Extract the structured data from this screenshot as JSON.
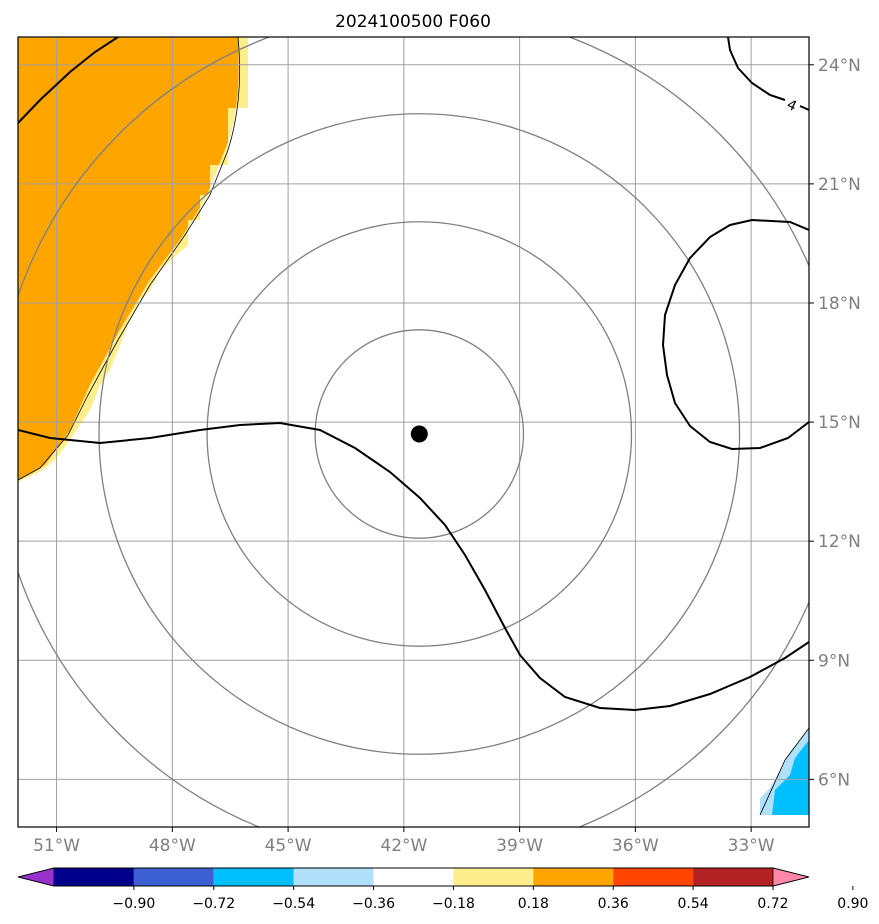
{
  "title": "2024100500 F060",
  "map": {
    "lon_range": [
      -52,
      -31.5
    ],
    "lat_range": [
      4.8,
      24.7
    ],
    "lon_ticks": [
      {
        "value": -51,
        "label": "51°W"
      },
      {
        "value": -48,
        "label": "48°W"
      },
      {
        "value": -45,
        "label": "45°W"
      },
      {
        "value": -42,
        "label": "42°W"
      },
      {
        "value": -39,
        "label": "39°W"
      },
      {
        "value": -36,
        "label": "36°W"
      },
      {
        "value": -33,
        "label": "33°W"
      }
    ],
    "lat_ticks": [
      {
        "value": 24,
        "label": "24°N"
      },
      {
        "value": 21,
        "label": "21°N"
      },
      {
        "value": 18,
        "label": "18°N"
      },
      {
        "value": 15,
        "label": "15°N"
      },
      {
        "value": 12,
        "label": "12°N"
      },
      {
        "value": 9,
        "label": "9°N"
      },
      {
        "value": 6,
        "label": "6°N"
      }
    ],
    "gridlines": true,
    "center_marker": {
      "lon": -41.6,
      "lat": 14.7
    },
    "range_rings_deg": [
      2.7,
      5.5,
      8.3,
      11.0
    ],
    "contour_label": "4",
    "fill_colors": {
      "orange": "#ffa500",
      "light_yellow": "#ffee8c",
      "deep_sky_blue": "#00bfff"
    }
  },
  "colorbar": {
    "levels": [
      "−0.90",
      "−0.72",
      "−0.54",
      "−0.36",
      "−0.18",
      "0.18",
      "0.36",
      "0.54",
      "0.72",
      "0.90"
    ],
    "colors": [
      "#9932cc",
      "#00008b",
      "#3c5fd2",
      "#00bfff",
      "#b0e0fa",
      "#ffffff",
      "#ffee8c",
      "#ffa500",
      "#ff4500",
      "#b22222",
      "#ff88aa"
    ]
  }
}
